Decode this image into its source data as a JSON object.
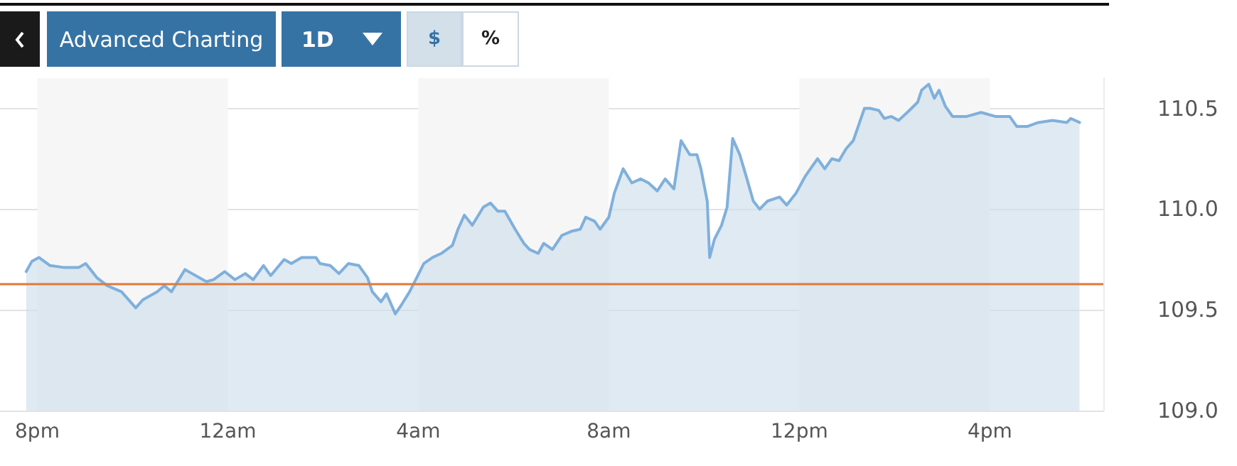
{
  "chart_data": {
    "type": "area",
    "annotations": [
      "Advanced Charting",
      "1D",
      "$",
      "%"
    ],
    "x": [
      "--01-01T19:46",
      "--01-01T19:53",
      "--01-01T20:02",
      "--01-01T20:16",
      "--01-01T20:34",
      "--01-01T20:52",
      "--01-01T21:01",
      "--01-01T21:15",
      "--01-01T21:28",
      "--01-01T21:46",
      "--01-01T22:04",
      "--01-01T22:13",
      "--01-01T22:31",
      "--01-01T22:40",
      "--01-01T22:49",
      "--01-01T23:06",
      "--01-01T23:15",
      "--01-01T23:33",
      "--01-01T23:42",
      "--01-01T23:56",
      "--01-02T00:09",
      "--01-02T00:22",
      "--01-02T00:32",
      "--01-02T00:45",
      "--01-02T00:54",
      "--01-02T01:11",
      "--01-02T01:20",
      "--01-02T01:33",
      "--01-02T01:51",
      "--01-02T01:56",
      "--01-02T02:09",
      "--01-02T02:20",
      "--01-02T02:32",
      "--01-02T02:45",
      "--01-02T02:56",
      "--01-02T03:02",
      "--01-02T03:13",
      "--01-02T03:20",
      "--01-02T03:31",
      "--01-02T03:38",
      "--01-02T03:49",
      "--01-02T03:58",
      "--01-02T04:07",
      "--01-02T04:18",
      "--01-02T04:29",
      "--01-02T04:43",
      "--01-02T04:50",
      "--01-02T04:58",
      "--01-02T05:08",
      "--01-02T05:22",
      "--01-02T05:31",
      "--01-02T05:40",
      "--01-02T05:49",
      "--01-02T06:02",
      "--01-02T06:13",
      "--01-02T06:20",
      "--01-02T06:31",
      "--01-02T06:38",
      "--01-02T06:49",
      "--01-02T07:01",
      "--01-02T07:13",
      "--01-02T07:24",
      "--01-02T07:31",
      "--01-02T07:42",
      "--01-02T07:49",
      "--01-02T08:00",
      "--01-02T08:07",
      "--01-02T08:18",
      "--01-02T08:29",
      "--01-02T08:40",
      "--01-02T08:50",
      "--01-02T09:01",
      "--01-02T09:11",
      "--01-02T09:22",
      "--01-02T09:31",
      "--01-02T09:42",
      "--01-02T09:51",
      "--01-02T09:56",
      "--01-02T10:04",
      "--01-02T10:07",
      "--01-02T10:13",
      "--01-02T10:22",
      "--01-02T10:29",
      "--01-02T10:36",
      "--01-02T10:45",
      "--01-02T10:54",
      "--01-02T11:02",
      "--01-02T11:10",
      "--01-02T11:20",
      "--01-02T11:35",
      "--01-02T11:44",
      "--01-02T11:56",
      "--01-02T12:07",
      "--01-02T12:14",
      "--01-02T12:23",
      "--01-02T12:32",
      "--01-02T12:41",
      "--01-02T12:50",
      "--01-02T12:59",
      "--01-02T13:08",
      "--01-02T13:22",
      "--01-02T13:29",
      "--01-02T13:40",
      "--01-02T13:47",
      "--01-02T13:56",
      "--01-02T14:05",
      "--01-02T14:16",
      "--01-02T14:29",
      "--01-02T14:34",
      "--01-02T14:43",
      "--01-02T14:50",
      "--01-02T14:56",
      "--01-02T15:04",
      "--01-02T15:13",
      "--01-02T15:31",
      "--01-02T15:49",
      "--01-02T16:07",
      "--01-02T16:25",
      "--01-02T16:34",
      "--01-02T16:47",
      "--01-02T17:01",
      "--01-02T17:19",
      "--01-02T17:37",
      "--01-02T17:42",
      "--01-02T17:53"
    ],
    "series": [
      {
        "color": "#7fb0dc",
        "values": [
          109.69,
          109.74,
          109.76,
          109.72,
          109.71,
          109.71,
          109.73,
          109.66,
          109.62,
          109.59,
          109.51,
          109.55,
          109.59,
          109.62,
          109.59,
          109.7,
          109.68,
          109.64,
          109.65,
          109.69,
          109.65,
          109.68,
          109.65,
          109.72,
          109.67,
          109.75,
          109.73,
          109.76,
          109.76,
          109.73,
          109.72,
          109.68,
          109.73,
          109.72,
          109.66,
          109.59,
          109.54,
          109.58,
          109.48,
          109.52,
          109.59,
          109.66,
          109.73,
          109.76,
          109.78,
          109.82,
          109.9,
          109.97,
          109.92,
          110.01,
          110.03,
          109.99,
          109.99,
          109.9,
          109.83,
          109.8,
          109.78,
          109.83,
          109.8,
          109.87,
          109.89,
          109.9,
          109.96,
          109.94,
          109.9,
          109.96,
          110.08,
          110.2,
          110.13,
          110.15,
          110.13,
          110.09,
          110.15,
          110.1,
          110.34,
          110.27,
          110.27,
          110.2,
          110.04,
          109.76,
          109.85,
          109.92,
          110.01,
          110.35,
          110.27,
          110.15,
          110.04,
          110.0,
          110.04,
          110.06,
          110.02,
          110.08,
          110.16,
          110.2,
          110.25,
          110.2,
          110.25,
          110.24,
          110.3,
          110.34,
          110.5,
          110.5,
          110.49,
          110.45,
          110.46,
          110.44,
          110.48,
          110.53,
          110.59,
          110.62,
          110.55,
          110.59,
          110.51,
          110.46,
          110.46,
          110.48,
          110.46,
          110.46,
          110.41,
          110.41,
          110.43,
          110.44,
          110.43,
          110.45,
          110.43
        ]
      }
    ],
    "xlim": [
      "--01-01T19:13",
      "--01-02T18:23"
    ],
    "xticks": [
      {
        "value": "--01-01T20:00",
        "label": "8pm"
      },
      {
        "value": "--01-02T00:00",
        "label": "12am"
      },
      {
        "value": "--01-02T04:00",
        "label": "4am"
      },
      {
        "value": "--01-02T08:00",
        "label": "8am"
      },
      {
        "value": "--01-02T12:00",
        "label": "12pm"
      },
      {
        "value": "--01-02T16:00",
        "label": "4pm"
      }
    ],
    "ylim": [
      109,
      110.65
    ],
    "yticks": [
      {
        "value": 109,
        "label": "109.0"
      },
      {
        "value": 109.5,
        "label": "109.5"
      },
      {
        "value": 110,
        "label": "110.0"
      },
      {
        "value": 110.5,
        "label": "110.5"
      }
    ],
    "ref_lines": [
      {
        "axis": "y",
        "value": 109.63,
        "color": "#e0793a"
      }
    ],
    "bands": [
      {
        "axis": "x",
        "from": "--01-01T20:00",
        "to": "--01-02T00:00",
        "color": "#f6f6f6"
      },
      {
        "axis": "x",
        "from": "--01-02T04:00",
        "to": "--01-02T08:00",
        "color": "#f6f6f6"
      },
      {
        "axis": "x",
        "from": "--01-02T12:00",
        "to": "--01-02T16:00",
        "color": "#f6f6f6"
      }
    ],
    "grid": "y",
    "marker": "none",
    "line_style": "solid"
  }
}
